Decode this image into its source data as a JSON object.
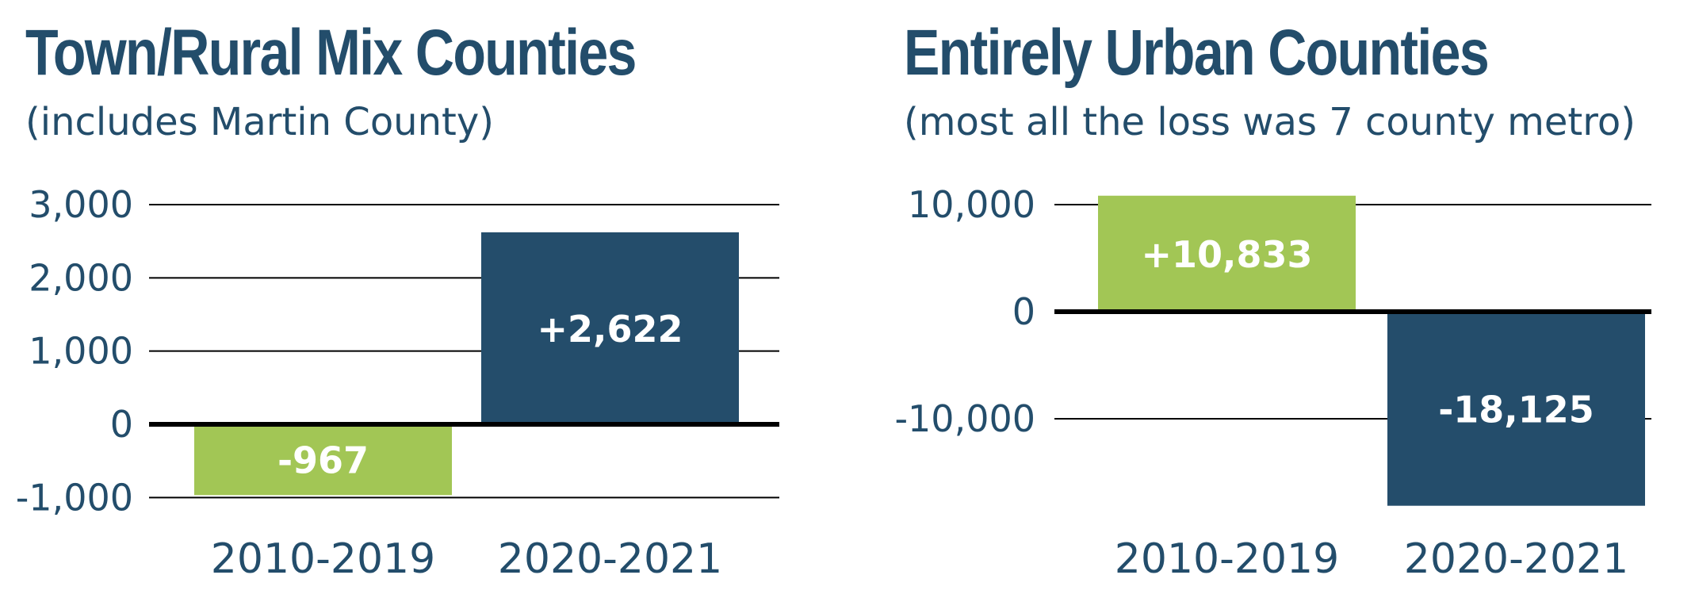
{
  "colors": {
    "text": "#234d6b",
    "bar_green": "#a2c655",
    "bar_navy": "#244d6b",
    "label_on_bar": "#ffffff",
    "gridline": "#000000"
  },
  "chart_data": [
    {
      "type": "bar",
      "title": "Town/Rural Mix Counties",
      "subtitle": "(includes Martin County)",
      "categories": [
        "2010-2019",
        "2020-2021"
      ],
      "values": [
        -967,
        2622
      ],
      "data_labels": [
        "-967",
        "+2,622"
      ],
      "bar_colors": [
        "#a2c655",
        "#244d6b"
      ],
      "yticks": [
        3000,
        2000,
        1000,
        0,
        -1000
      ],
      "ytick_labels": [
        "3,000",
        "2,000",
        "1,000",
        "0",
        "-1,000"
      ],
      "ylim": [
        -1000,
        3000
      ],
      "grid": true,
      "legend": "none"
    },
    {
      "type": "bar",
      "title": "Entirely Urban Counties",
      "subtitle": "(most all the loss was 7 county metro)",
      "categories": [
        "2010-2019",
        "2020-2021"
      ],
      "values": [
        10833,
        -18125
      ],
      "data_labels": [
        "+10,833",
        "-18,125"
      ],
      "bar_colors": [
        "#a2c655",
        "#244d6b"
      ],
      "yticks": [
        10000,
        0,
        -10000
      ],
      "ytick_labels": [
        "10,000",
        "0",
        "-10,000"
      ],
      "ylim": [
        -18125,
        10000
      ],
      "grid": true,
      "legend": "none"
    }
  ]
}
